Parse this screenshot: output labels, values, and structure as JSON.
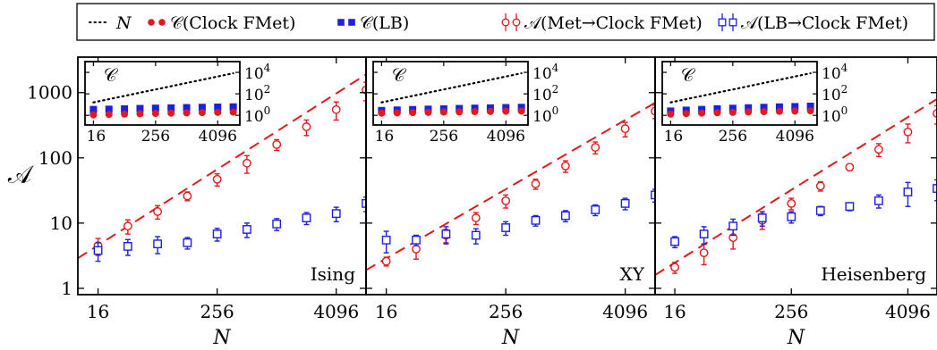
{
  "legend": {
    "items": [
      {
        "label": "N",
        "style": "dotted",
        "color": "#000000"
      },
      {
        "label": "𝒞(Clock FMet)",
        "style": "circle-filled",
        "color": "#e31a1c"
      },
      {
        "label": "𝒞(LB)",
        "style": "square-filled",
        "color": "#1f1fe0"
      },
      {
        "label": "𝒜(Met→Clock FMet)",
        "style": "circle-open-err",
        "color": "#e31a1c"
      },
      {
        "label": "𝒜(LB→Clock FMet)",
        "style": "square-open-err",
        "color": "#1f1fe0"
      }
    ],
    "placement": "top"
  },
  "colors": {
    "red": "#e31a1c",
    "blue": "#1f1fe0",
    "black": "#000000"
  },
  "chart_data": [
    {
      "type": "scatter",
      "title": "Ising",
      "xlabel": "N",
      "ylabel": "𝒜",
      "xscale": "log2",
      "yscale": "log",
      "xlim": [
        10,
        8192
      ],
      "ylim": [
        0.8,
        3500
      ],
      "xticks": [
        16,
        256,
        4096
      ],
      "yticks": [
        1,
        10,
        100,
        1000
      ],
      "fit_line": {
        "x": [
          10,
          8192
        ],
        "y": [
          2.9,
          1900
        ]
      },
      "series": [
        {
          "name": "𝒜(Met→Clock FMet)",
          "x": [
            16,
            32,
            64,
            128,
            256,
            512,
            1024,
            2048,
            4096,
            8192
          ],
          "y": [
            4.5,
            9,
            15,
            26,
            47,
            83,
            160,
            300,
            550,
            1100
          ],
          "err": [
            1.3,
            2.2,
            3.5,
            4,
            10,
            25,
            30,
            80,
            170,
            350
          ]
        },
        {
          "name": "𝒜(LB→Clock FMet)",
          "x": [
            16,
            32,
            64,
            128,
            256,
            512,
            1024,
            2048,
            4096,
            8192
          ],
          "y": [
            3.8,
            4.4,
            4.8,
            5,
            6.8,
            8,
            9.7,
            12,
            14,
            20
          ],
          "err": [
            1.2,
            1.2,
            1.4,
            1,
            1.5,
            2,
            2,
            2.5,
            3.5,
            5
          ]
        }
      ],
      "inset": {
        "ylabel": "𝒞",
        "xticks": [
          16,
          256,
          4096
        ],
        "yticks": [
          "10^0",
          "10^2",
          "10^4"
        ],
        "ylim_exp": [
          -0.9,
          5
        ],
        "N_line": {
          "x": [
            16,
            8192
          ],
          "y": [
            16,
            8192
          ]
        },
        "series": [
          {
            "name": "𝒞(LB)",
            "x": [
              16,
              32,
              64,
              128,
              256,
              512,
              1024,
              2048,
              4096,
              8192
            ],
            "y": [
              3.5,
              3.7,
              4,
              4.3,
              4.6,
              4.9,
              5.2,
              5.5,
              5.8,
              6.1
            ]
          },
          {
            "name": "𝒞(Clock FMet)",
            "x": [
              16,
              32,
              64,
              128,
              256,
              512,
              1024,
              2048,
              4096,
              8192
            ],
            "y": [
              1.1,
              1.2,
              1.3,
              1.4,
              1.5,
              1.6,
              1.7,
              1.8,
              1.9,
              2.0
            ]
          }
        ]
      }
    },
    {
      "type": "scatter",
      "title": "XY",
      "xlabel": "N",
      "xscale": "log2",
      "yscale": "log",
      "xlim": [
        10,
        8192
      ],
      "ylim": [
        0.8,
        3500
      ],
      "xticks": [
        16,
        256,
        4096
      ],
      "fit_line": {
        "x": [
          10,
          8192
        ],
        "y": [
          1.9,
          700
        ]
      },
      "series": [
        {
          "name": "𝒜(Met→Clock FMet)",
          "x": [
            16,
            32,
            64,
            128,
            256,
            512,
            1024,
            2048,
            4096,
            8192
          ],
          "y": [
            2.6,
            4,
            6.5,
            12,
            22,
            40,
            75,
            145,
            280,
            520
          ],
          "err": [
            0.4,
            1.2,
            1.5,
            2.5,
            5,
            7,
            15,
            30,
            70,
            120
          ]
        },
        {
          "name": "𝒜(LB→Clock FMet)",
          "x": [
            16,
            32,
            64,
            128,
            256,
            512,
            1024,
            2048,
            4096,
            8192
          ],
          "y": [
            5.5,
            5.5,
            6.8,
            6.5,
            8.5,
            11,
            13,
            16,
            20,
            27
          ],
          "err": [
            2,
            1,
            2,
            1.7,
            2,
            2,
            2.5,
            3,
            4,
            6
          ]
        }
      ],
      "inset": {
        "ylabel": "𝒞",
        "xticks": [
          16,
          256,
          4096
        ],
        "yticks": [
          "10^0",
          "10^2",
          "10^4"
        ],
        "ylim_exp": [
          -0.9,
          5
        ],
        "N_line": {
          "x": [
            16,
            8192
          ],
          "y": [
            16,
            8192
          ]
        },
        "series": [
          {
            "name": "𝒞(LB)",
            "x": [
              16,
              32,
              64,
              128,
              256,
              512,
              1024,
              2048,
              4096,
              8192
            ],
            "y": [
              2.8,
              3.1,
              3.4,
              3.7,
              4,
              4.3,
              4.6,
              4.9,
              5.2,
              5.5
            ]
          },
          {
            "name": "𝒞(Clock FMet)",
            "x": [
              16,
              32,
              64,
              128,
              256,
              512,
              1024,
              2048,
              4096,
              8192
            ],
            "y": [
              1.6,
              1.7,
              1.8,
              1.9,
              2,
              2.1,
              2.2,
              2.3,
              2.4,
              2.5
            ]
          }
        ]
      }
    },
    {
      "type": "scatter",
      "title": "Heisenberg",
      "xlabel": "N",
      "xscale": "log2",
      "yscale": "log",
      "xlim": [
        10,
        8192
      ],
      "ylim": [
        0.8,
        3500
      ],
      "xticks": [
        16,
        256,
        4096
      ],
      "fit_line": {
        "x": [
          10,
          8192
        ],
        "y": [
          1.6,
          800
        ]
      },
      "series": [
        {
          "name": "𝒜(Met→Clock FMet)",
          "x": [
            16,
            32,
            64,
            128,
            256,
            512,
            1024,
            2048,
            4096,
            8192
          ],
          "y": [
            2.1,
            3.5,
            6,
            11,
            20,
            37,
            72,
            135,
            250,
            480
          ],
          "err": [
            0.4,
            1.2,
            2,
            3,
            4,
            6,
            8,
            30,
            80,
            150
          ]
        },
        {
          "name": "𝒜(LB→Clock FMet)",
          "x": [
            16,
            32,
            64,
            128,
            256,
            512,
            1024,
            2048,
            4096,
            8192
          ],
          "y": [
            5.2,
            6.8,
            9,
            12,
            12.5,
            15.5,
            18,
            22,
            30,
            34
          ],
          "err": [
            1,
            2,
            2.5,
            3,
            2.5,
            2.5,
            2.5,
            5,
            12,
            12
          ]
        }
      ],
      "inset": {
        "ylabel": "𝒞",
        "xticks": [
          16,
          256,
          4096
        ],
        "yticks": [
          "10^0",
          "10^2",
          "10^4"
        ],
        "ylim_exp": [
          -0.9,
          5
        ],
        "N_line": {
          "x": [
            16,
            8192
          ],
          "y": [
            16,
            8192
          ]
        },
        "series": [
          {
            "name": "𝒞(LB)",
            "x": [
              16,
              32,
              64,
              128,
              256,
              512,
              1024,
              2048,
              4096,
              8192
            ],
            "y": [
              2.5,
              3,
              3.5,
              4,
              4.5,
              5,
              5.5,
              6,
              6.5,
              7
            ]
          },
          {
            "name": "𝒞(Clock FMet)",
            "x": [
              16,
              32,
              64,
              128,
              256,
              512,
              1024,
              2048,
              4096,
              8192
            ],
            "y": [
              1.3,
              1.45,
              1.6,
              1.75,
              1.9,
              2.05,
              2.2,
              2.35,
              2.5,
              2.65
            ]
          }
        ]
      }
    }
  ]
}
